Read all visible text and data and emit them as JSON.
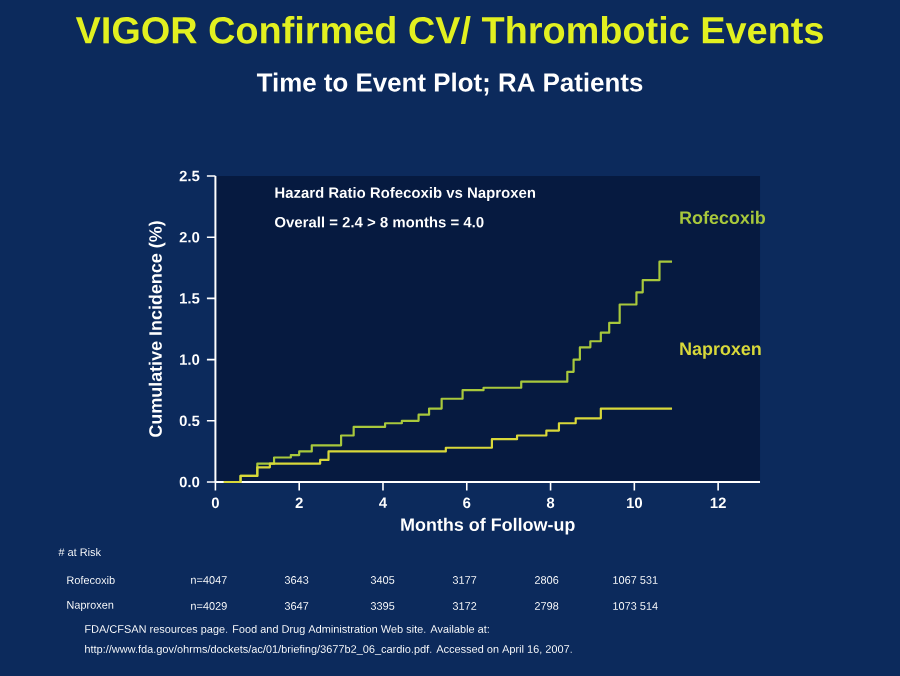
{
  "chart_data": {
    "type": "step",
    "title": "VIGOR Confirmed CV/ Thrombotic Events",
    "subtitle": "Time to Event Plot;  RA Patients",
    "xlabel": "Months of Follow-up",
    "ylabel": "Cumulative Incidence (%)",
    "xlim": [
      0,
      13
    ],
    "ylim": [
      0,
      2.5
    ],
    "xticks": [
      0,
      2,
      4,
      6,
      8,
      10,
      12
    ],
    "yticks": [
      {
        "value": 0,
        "label": "0.0"
      },
      {
        "value": 0.5,
        "label": "0.5"
      },
      {
        "value": 1,
        "label": "1.0"
      },
      {
        "value": 1.5,
        "label": "1.5"
      },
      {
        "value": 2,
        "label": "2.0"
      },
      {
        "value": 2.5,
        "label": "2.5"
      }
    ],
    "legend": false,
    "grid": false,
    "series": [
      {
        "name": "Rofecoxib",
        "color": "#a8c83c",
        "x": [
          0.2,
          0.6,
          1.0,
          1.4,
          1.8,
          2.0,
          2.3,
          3.0,
          3.3,
          4.05,
          4.45,
          4.85,
          5.1,
          5.4,
          5.9,
          6.4,
          7.3,
          8.3,
          8.4,
          8.55,
          8.7,
          8.95,
          9.2,
          9.4,
          9.65,
          10.05,
          10.2,
          10.6,
          10.9
        ],
        "values": [
          0,
          0.05,
          0.15,
          0.2,
          0.22,
          0.25,
          0.3,
          0.38,
          0.45,
          0.48,
          0.5,
          0.55,
          0.6,
          0.68,
          0.75,
          0.77,
          0.82,
          0.82,
          0.9,
          1.0,
          1.1,
          1.15,
          1.22,
          1.3,
          1.45,
          1.55,
          1.65,
          1.8,
          1.8
        ]
      },
      {
        "name": "Naproxen",
        "color": "#d8d83a",
        "x": [
          0.2,
          0.6,
          1.0,
          1.3,
          2.5,
          2.7,
          5.5,
          6.6,
          7.2,
          7.9,
          8.2,
          8.6,
          9.2,
          10.9
        ],
        "values": [
          0,
          0.05,
          0.12,
          0.15,
          0.18,
          0.25,
          0.28,
          0.35,
          0.38,
          0.42,
          0.48,
          0.52,
          0.6,
          0.6
        ]
      }
    ],
    "annotations": [
      "Hazard Ratio Rofecoxib vs Naproxen",
      "Overall = 2.4     > 8 months = 4.0",
      "# at Risk",
      "Rofecoxib",
      "n=4047",
      "3643",
      "3405",
      "3177",
      "2806",
      "1067 531",
      "Naproxen",
      "n=4029",
      "3647",
      "3395",
      "3172",
      "2798",
      "1073 514",
      "FDA/CFSAN resources page. Food and Drug Administration Web site. Available at:",
      "http://www.fda.gov/ohrms/dockets/ac/01/briefing/3677b2_06_cardio.pdf. Accessed on April 16, 2007."
    ]
  }
}
